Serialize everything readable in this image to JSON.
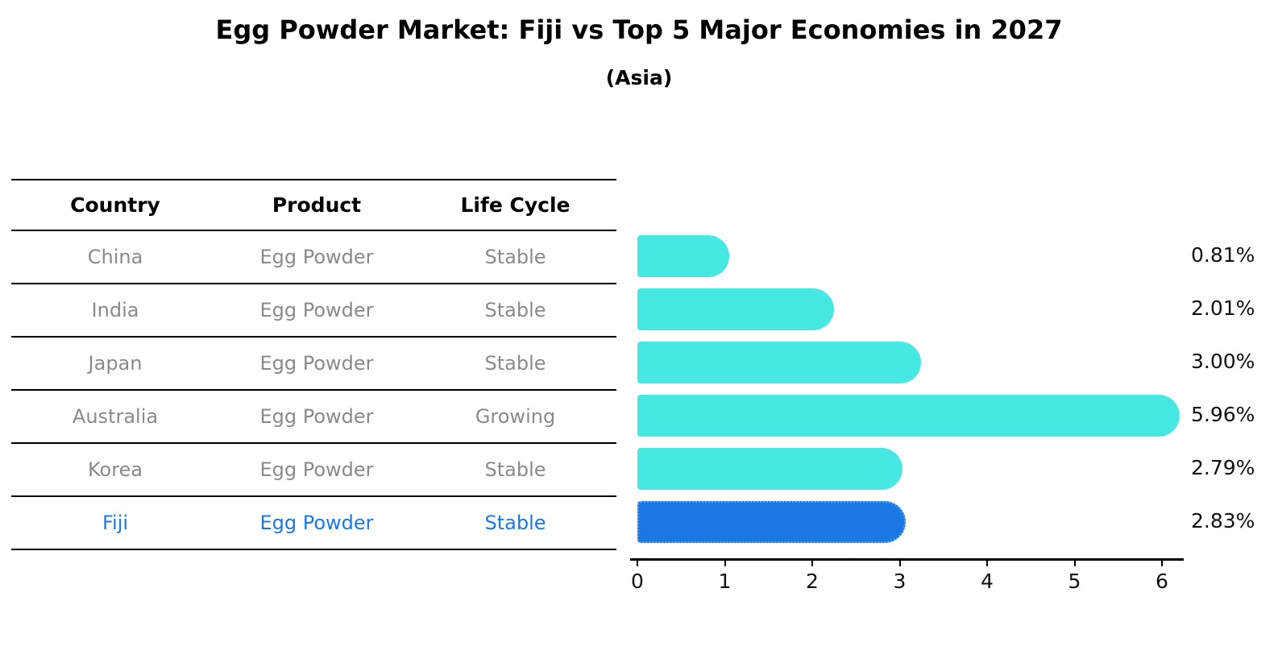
{
  "title": "Egg Powder Market: Fiji vs Top 5 Major Economies in 2027",
  "subtitle": "(Asia)",
  "table": {
    "headers": [
      "Country",
      "Product",
      "Life Cycle"
    ],
    "rows": [
      {
        "country": "China",
        "product": "Egg Powder",
        "life_cycle": "Stable",
        "highlight": false
      },
      {
        "country": "India",
        "product": "Egg Powder",
        "life_cycle": "Stable",
        "highlight": false
      },
      {
        "country": "Japan",
        "product": "Egg Powder",
        "life_cycle": "Stable",
        "highlight": false
      },
      {
        "country": "Australia",
        "product": "Egg Powder",
        "life_cycle": "Growing",
        "highlight": false
      },
      {
        "country": "Korea",
        "product": "Egg Powder",
        "life_cycle": "Stable",
        "highlight": false
      },
      {
        "country": "Fiji",
        "product": "Egg Powder",
        "life_cycle": "Stable",
        "highlight": true
      }
    ]
  },
  "chart_data": {
    "type": "bar",
    "orientation": "horizontal",
    "title": "Egg Powder Market: Fiji vs Top 5 Major Economies in 2027",
    "subtitle": "(Asia)",
    "categories": [
      "China",
      "India",
      "Japan",
      "Australia",
      "Korea",
      "Fiji"
    ],
    "values": [
      0.81,
      2.01,
      3.0,
      5.96,
      2.79,
      2.83
    ],
    "value_labels": [
      "0.81%",
      "2.01%",
      "3.00%",
      "5.96%",
      "2.79%",
      "2.83%"
    ],
    "x_ticks": [
      "0",
      "1",
      "2",
      "3",
      "4",
      "5",
      "6"
    ],
    "xlim": [
      0,
      6.25
    ],
    "grid": false,
    "legend": "none",
    "bar_color": "#46e8e1",
    "highlight_color": "#1b78e2",
    "highlight_edge_color": "#59a8ef",
    "highlight_index": 5
  },
  "colors": {
    "background": "#ffffff",
    "table_text": "#8a8a8a",
    "header_text": "#000000",
    "highlight_text": "#1b78e2",
    "axis": "#000000"
  }
}
